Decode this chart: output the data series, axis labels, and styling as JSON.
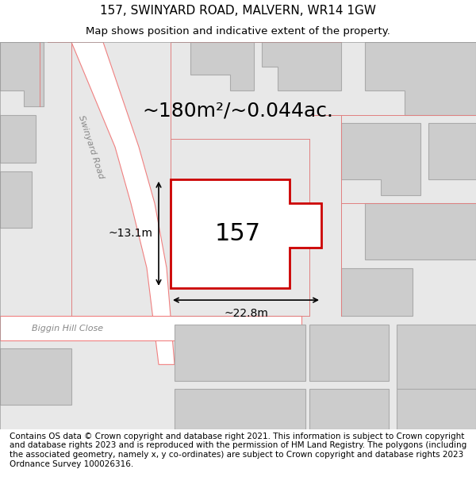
{
  "title": "157, SWINYARD ROAD, MALVERN, WR14 1GW",
  "subtitle": "Map shows position and indicative extent of the property.",
  "area_text": "~180m²/~0.044ac.",
  "property_label": "157",
  "dim1": "~13.1m",
  "dim2": "~22.8m",
  "footer": "Contains OS data © Crown copyright and database right 2021. This information is subject to Crown copyright and database rights 2023 and is reproduced with the permission of HM Land Registry. The polygons (including the associated geometry, namely x, y co-ordinates) are subject to Crown copyright and database rights 2023 Ordnance Survey 100026316.",
  "bg_color": "#f0f0f0",
  "map_bg": "#e8e8e8",
  "road_color": "#ffffff",
  "building_color": "#d4d4d4",
  "property_outline_color": "#cc0000",
  "property_fill": "#ffffff",
  "road_line_color": "#f08080",
  "title_fontsize": 11,
  "subtitle_fontsize": 9.5,
  "area_fontsize": 18,
  "label_fontsize": 22,
  "dim_fontsize": 10,
  "footer_fontsize": 7.5
}
